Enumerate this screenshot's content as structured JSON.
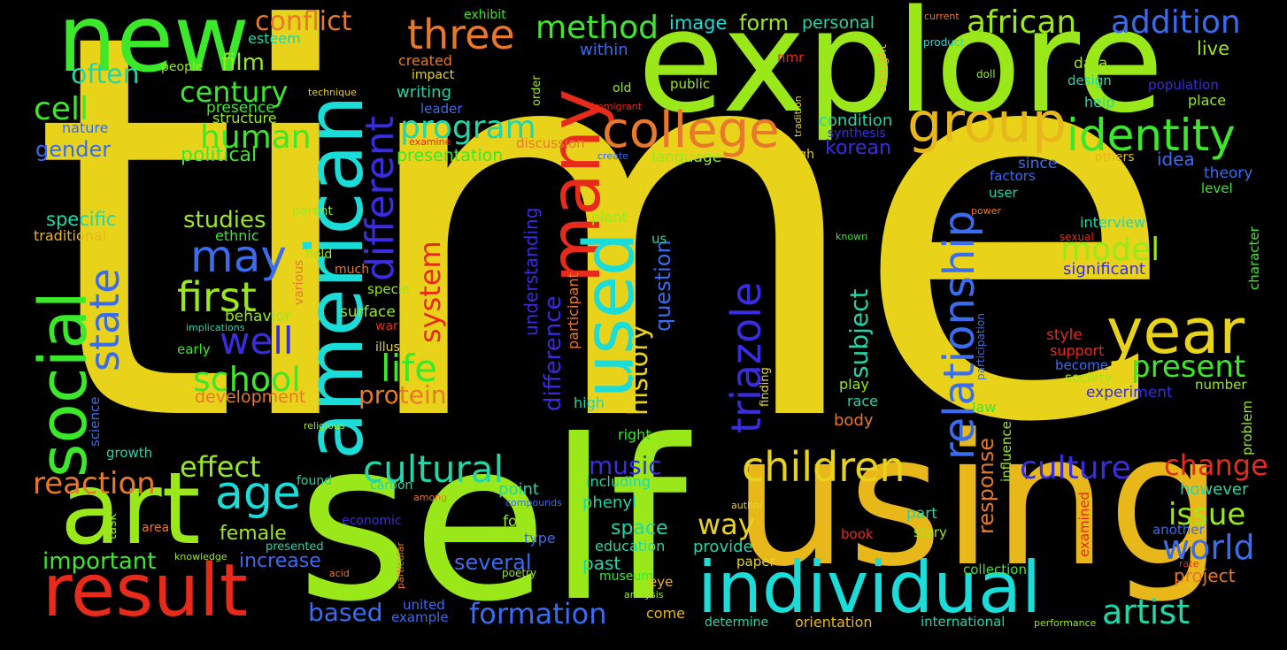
{
  "colors": {
    "background": "#000000",
    "yellow": "#E8D31A",
    "lime": "#9BE81A",
    "green": "#3BE82A",
    "cyan": "#1ADCD8",
    "teal": "#22D6A8",
    "blue": "#3A6CF0",
    "indigo": "#3A2CE0",
    "red": "#E82A1A",
    "orange": "#E8782A",
    "amber": "#E8B81A"
  },
  "words": [
    "time",
    "self",
    "using",
    "explore",
    "american",
    "art",
    "new",
    "result",
    "individual",
    "many",
    "used",
    "social",
    "year",
    "college",
    "group",
    "identity",
    "relationship",
    "children",
    "triazole",
    "cultural",
    "three",
    "method",
    "african",
    "addition",
    "different",
    "state",
    "may",
    "first",
    "well",
    "school",
    "life",
    "age",
    "effect",
    "reaction",
    "culture",
    "world",
    "artist",
    "formation",
    "change",
    "issue",
    "present",
    "model",
    "program",
    "human",
    "century",
    "cell",
    "often",
    "film",
    "conflict",
    "history",
    "question",
    "system",
    "subject",
    "music",
    "way",
    "response",
    "based",
    "several",
    "important",
    "female",
    "increase",
    "protein",
    "development",
    "studies",
    "specific",
    "traditional",
    "gender",
    "political",
    "difference",
    "understanding",
    "image",
    "form",
    "personal",
    "within",
    "exhibit",
    "created",
    "impact",
    "writing",
    "leader",
    "structure",
    "presence",
    "esteem",
    "nature",
    "people",
    "technique",
    "discussion",
    "presentation",
    "korean",
    "language",
    "condition",
    "synthesis",
    "although",
    "idea",
    "since",
    "factors",
    "theory",
    "level",
    "user",
    "live",
    "data",
    "design",
    "population",
    "place",
    "help",
    "others",
    "current",
    "product",
    "doll",
    "power",
    "interview",
    "sexual",
    "significant",
    "character",
    "known",
    "participant",
    "us",
    "plant",
    "participation",
    "tradition",
    "thought",
    "old",
    "immigrant",
    "order",
    "public",
    "nmr",
    "create",
    "examine",
    "behavior",
    "surface",
    "war",
    "illustrate",
    "parent",
    "field",
    "much",
    "specie",
    "ethnic",
    "various",
    "implications",
    "early",
    "high",
    "religious",
    "right",
    "growth",
    "science",
    "found",
    "carbon",
    "among",
    "compounds",
    "point",
    "phenyl",
    "including",
    "however",
    "another",
    "task",
    "area",
    "economic",
    "four",
    "space",
    "part",
    "story",
    "book",
    "examined",
    "type",
    "provide",
    "education",
    "past",
    "museum",
    "eye",
    "paper",
    "presented",
    "knowledge",
    "acid",
    "particular",
    "poetry",
    "analysis",
    "united",
    "example",
    "come",
    "determine",
    "orientation",
    "international",
    "performance",
    "collection",
    "project",
    "rate",
    "author",
    "experiment",
    "number",
    "support",
    "become",
    "society",
    "style",
    "body",
    "race",
    "play",
    "law",
    "influence",
    "problem",
    "finding"
  ]
}
